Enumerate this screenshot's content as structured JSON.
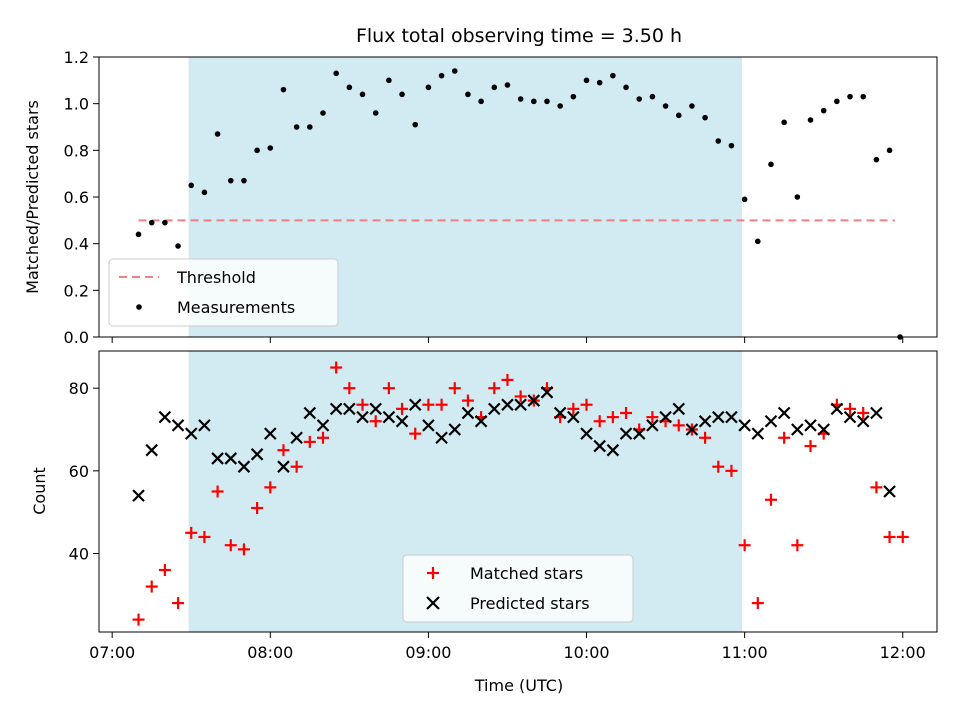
{
  "title": "Flux total observing time = 3.50 h",
  "colors": {
    "shade": "#add8e6",
    "threshold": "#f08080",
    "measurement": "#000000",
    "matched": "#ff0000",
    "predicted": "#000000"
  },
  "x_axis": {
    "label": "Time (UTC)",
    "ticks": [
      {
        "t": "07:00",
        "label": "07:00"
      },
      {
        "t": "08:00",
        "label": "08:00"
      },
      {
        "t": "09:00",
        "label": "09:00"
      },
      {
        "t": "10:00",
        "label": "10:00"
      },
      {
        "t": "11:00",
        "label": "11:00"
      },
      {
        "t": "12:00",
        "label": "12:00"
      }
    ],
    "xlim": [
      "06:55",
      "12:13"
    ]
  },
  "chart_data": [
    {
      "type": "scatter",
      "ylabel": "Matched/Predicted stars",
      "ylim": [
        0.0,
        1.2
      ],
      "yticks": [
        "0.0",
        "0.2",
        "0.4",
        "0.6",
        "0.8",
        "1.0",
        "1.2"
      ],
      "shaded_span": [
        "07:29",
        "10:59"
      ],
      "legend_position": "lower-left",
      "threshold": {
        "name": "Threshold",
        "value": 0.5,
        "x_range": [
          "07:10",
          "11:57"
        ]
      },
      "series": [
        {
          "name": "Measurements",
          "x": [
            "07:10",
            "07:15",
            "07:20",
            "07:25",
            "07:30",
            "07:35",
            "07:40",
            "07:45",
            "07:50",
            "07:55",
            "08:00",
            "08:05",
            "08:10",
            "08:15",
            "08:20",
            "08:25",
            "08:30",
            "08:35",
            "08:40",
            "08:45",
            "08:50",
            "08:55",
            "09:00",
            "09:05",
            "09:10",
            "09:15",
            "09:20",
            "09:25",
            "09:30",
            "09:35",
            "09:40",
            "09:45",
            "09:50",
            "09:55",
            "10:00",
            "10:05",
            "10:10",
            "10:15",
            "10:20",
            "10:25",
            "10:30",
            "10:35",
            "10:40",
            "10:45",
            "10:50",
            "10:55",
            "11:00",
            "11:05",
            "11:10",
            "11:15",
            "11:20",
            "11:25",
            "11:30",
            "11:35",
            "11:40",
            "11:45",
            "11:50",
            "11:55",
            "11:59"
          ],
          "y": [
            0.44,
            0.49,
            0.49,
            0.39,
            0.65,
            0.62,
            0.87,
            0.67,
            0.67,
            0.8,
            0.81,
            1.06,
            0.9,
            0.9,
            0.96,
            1.13,
            1.07,
            1.04,
            0.96,
            1.1,
            1.04,
            0.91,
            1.07,
            1.12,
            1.14,
            1.04,
            1.01,
            1.07,
            1.08,
            1.02,
            1.01,
            1.01,
            0.99,
            1.03,
            1.1,
            1.09,
            1.12,
            1.07,
            1.02,
            1.03,
            0.99,
            0.95,
            0.99,
            0.94,
            0.84,
            0.82,
            0.59,
            0.41,
            0.74,
            0.92,
            0.6,
            0.93,
            0.97,
            1.01,
            1.03,
            1.03,
            0.76,
            0.8,
            0.0
          ]
        }
      ]
    },
    {
      "type": "scatter",
      "ylabel": "Count",
      "ylim": [
        21,
        89
      ],
      "yticks": [
        "40",
        "60",
        "80"
      ],
      "shaded_span": [
        "07:29",
        "10:59"
      ],
      "legend_position": "lower-center",
      "series": [
        {
          "name": "Matched stars",
          "x": [
            "07:10",
            "07:15",
            "07:20",
            "07:25",
            "07:30",
            "07:35",
            "07:40",
            "07:45",
            "07:50",
            "07:55",
            "08:00",
            "08:05",
            "08:10",
            "08:15",
            "08:20",
            "08:25",
            "08:30",
            "08:35",
            "08:40",
            "08:45",
            "08:50",
            "08:55",
            "09:00",
            "09:05",
            "09:10",
            "09:15",
            "09:20",
            "09:25",
            "09:30",
            "09:35",
            "09:40",
            "09:45",
            "09:50",
            "09:55",
            "10:00",
            "10:05",
            "10:10",
            "10:15",
            "10:20",
            "10:25",
            "10:30",
            "10:35",
            "10:40",
            "10:45",
            "10:50",
            "10:55",
            "11:00",
            "11:05",
            "11:10",
            "11:15",
            "11:20",
            "11:25",
            "11:30",
            "11:35",
            "11:40",
            "11:45",
            "11:50",
            "11:55",
            "12:00"
          ],
          "y": [
            24,
            32,
            36,
            28,
            45,
            44,
            55,
            42,
            41,
            51,
            56,
            65,
            61,
            67,
            68,
            85,
            80,
            76,
            72,
            80,
            75,
            69,
            76,
            76,
            80,
            77,
            73,
            80,
            82,
            78,
            77,
            80,
            73,
            75,
            76,
            72,
            73,
            74,
            70,
            73,
            72,
            71,
            70,
            68,
            61,
            60,
            42,
            28,
            53,
            68,
            42,
            66,
            69,
            76,
            75,
            74,
            56,
            44,
            44
          ]
        },
        {
          "name": "Predicted stars",
          "x": [
            "07:10",
            "07:15",
            "07:20",
            "07:25",
            "07:30",
            "07:35",
            "07:40",
            "07:45",
            "07:50",
            "07:55",
            "08:00",
            "08:05",
            "08:10",
            "08:15",
            "08:20",
            "08:25",
            "08:30",
            "08:35",
            "08:40",
            "08:45",
            "08:50",
            "08:55",
            "09:00",
            "09:05",
            "09:10",
            "09:15",
            "09:20",
            "09:25",
            "09:30",
            "09:35",
            "09:40",
            "09:45",
            "09:50",
            "09:55",
            "10:00",
            "10:05",
            "10:10",
            "10:15",
            "10:20",
            "10:25",
            "10:30",
            "10:35",
            "10:40",
            "10:45",
            "10:50",
            "10:55",
            "11:00",
            "11:05",
            "11:10",
            "11:15",
            "11:20",
            "11:25",
            "11:30",
            "11:35",
            "11:40",
            "11:45",
            "11:50",
            "11:55"
          ],
          "y": [
            54,
            65,
            73,
            71,
            69,
            71,
            63,
            63,
            61,
            64,
            69,
            61,
            68,
            74,
            71,
            75,
            75,
            73,
            75,
            73,
            72,
            76,
            71,
            68,
            70,
            74,
            72,
            75,
            76,
            76,
            77,
            79,
            74,
            73,
            69,
            66,
            65,
            69,
            69,
            71,
            73,
            75,
            70,
            72,
            73,
            73,
            71,
            69,
            72,
            74,
            70,
            71,
            70,
            75,
            73,
            72,
            74,
            55
          ]
        }
      ]
    }
  ]
}
